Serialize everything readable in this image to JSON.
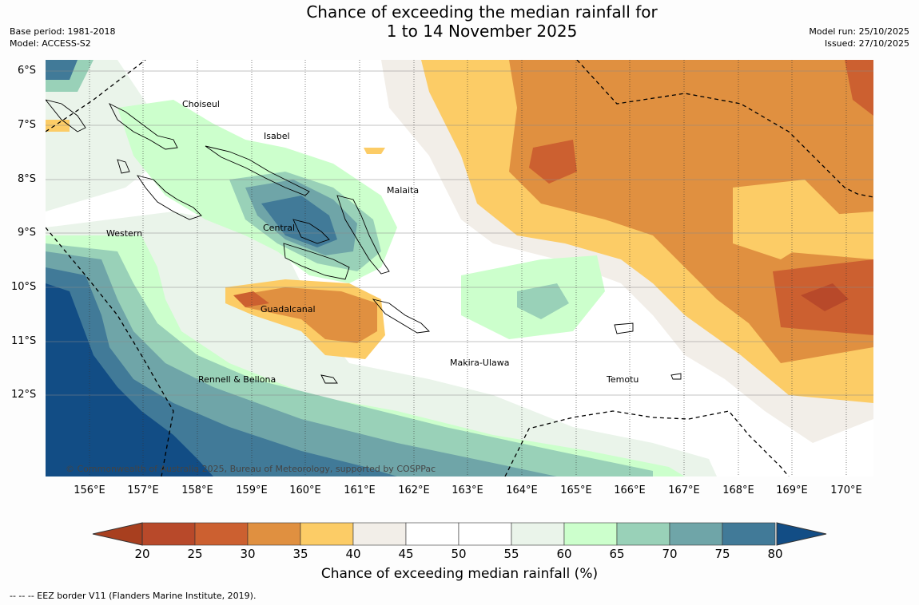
{
  "title": {
    "line1": "Chance of exceeding the median rainfall for",
    "line2": "1 to 14 November 2025"
  },
  "meta_left": {
    "base_period": "Base period: 1981-2018",
    "model": "Model: ACCESS-S2"
  },
  "meta_right": {
    "model_run": "Model run: 25/10/2025",
    "issued": "Issued: 27/10/2025"
  },
  "map": {
    "lat_labels": [
      "6°S",
      "7°S",
      "8°S",
      "9°S",
      "10°S",
      "11°S",
      "12°S"
    ],
    "lon_labels": [
      "156°E",
      "157°E",
      "158°E",
      "159°E",
      "160°E",
      "161°E",
      "162°E",
      "163°E",
      "164°E",
      "165°E",
      "166°E",
      "167°E",
      "168°E",
      "169°E",
      "170°E"
    ],
    "regions": [
      "Choiseul",
      "Isabel",
      "Malaita",
      "Western",
      "Central",
      "Guadalcanal",
      "Makira-Ulawa",
      "Rennell & Bellona",
      "Temotu"
    ],
    "copyright": "© Commonwealth of Australia 2025, Bureau of Meteorology, supported by COSPPac"
  },
  "colorbar": {
    "title": "Chance of exceeding median rainfall (%)",
    "ticks": [
      "20",
      "25",
      "30",
      "35",
      "40",
      "45",
      "50",
      "55",
      "60",
      "65",
      "70",
      "75",
      "80"
    ],
    "colors": [
      "#a83f1f",
      "#b8492a",
      "#cc6030",
      "#e09040",
      "#fccc66",
      "#f2eee8",
      "#ffffff",
      "#ffffff",
      "#eaf4ea",
      "#ccffcc",
      "#99d1b8",
      "#6fa5a8",
      "#417a98",
      "#124d85"
    ]
  },
  "eez_note": "--  --  -- EEZ border V11 (Flanders Marine Institute, 2019)."
}
